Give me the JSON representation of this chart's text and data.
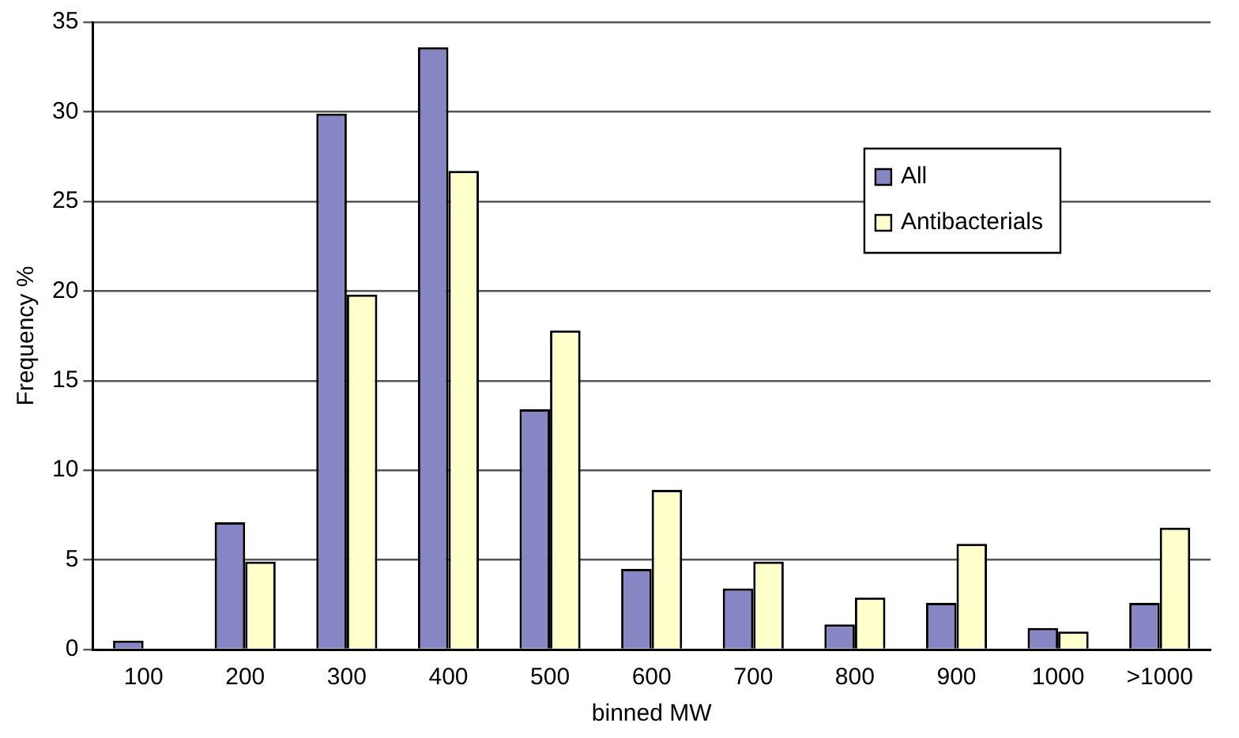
{
  "chart_data": {
    "type": "bar",
    "xlabel": "binned MW",
    "ylabel": "Frequency %",
    "categories": [
      "100",
      "200",
      "300",
      "400",
      "500",
      "600",
      "700",
      "800",
      "900",
      "1000",
      ">1000"
    ],
    "series": [
      {
        "name": "All",
        "color": "#8686c4",
        "values": [
          0.5,
          7.1,
          29.9,
          33.6,
          13.4,
          4.5,
          3.4,
          1.4,
          2.6,
          1.2,
          2.6
        ]
      },
      {
        "name": "Antibacterials",
        "color": "#ffffcc",
        "values": [
          0,
          4.9,
          19.8,
          26.7,
          17.8,
          8.9,
          4.9,
          2.9,
          5.9,
          1.0,
          6.8
        ]
      }
    ],
    "ylim": [
      0,
      35
    ],
    "yticks": [
      0,
      5,
      10,
      15,
      20,
      25,
      30,
      35
    ],
    "grid": "y",
    "legend": "top right"
  }
}
